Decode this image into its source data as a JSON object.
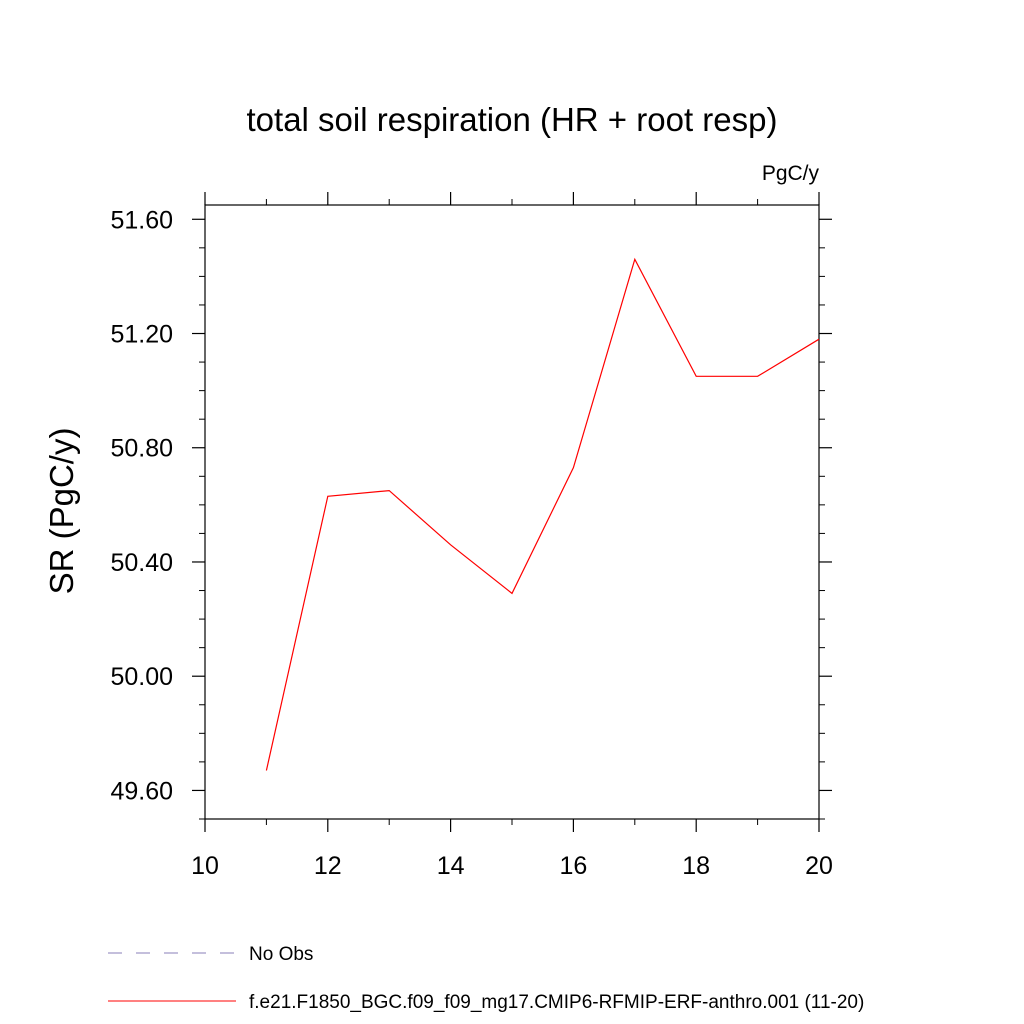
{
  "chart_data": {
    "type": "line",
    "title": "total soil respiration (HR + root resp)",
    "units_label": "PgC/y",
    "ylabel": "SR  (PgC/y)",
    "xlabel": "",
    "xlim": [
      10,
      20
    ],
    "ylim": [
      49.5,
      51.65
    ],
    "x_ticks": [
      10,
      12,
      14,
      16,
      18,
      20
    ],
    "y_ticks": [
      49.6,
      50.0,
      50.4,
      50.8,
      51.2,
      51.6
    ],
    "y_tick_labels": [
      "49.60",
      "50.00",
      "50.40",
      "50.80",
      "51.20",
      "51.60"
    ],
    "series": [
      {
        "name": "f.e21.F1850_BGC.f09_f09_mg17.CMIP6-RFMIP-ERF-anthro.001 (11-20)",
        "color": "#ff0000",
        "style": "solid",
        "x": [
          11,
          12,
          13,
          14,
          15,
          16,
          17,
          18,
          19,
          20
        ],
        "y": [
          49.67,
          50.63,
          50.65,
          50.46,
          50.29,
          50.73,
          51.46,
          51.05,
          51.05,
          51.18
        ]
      }
    ],
    "legend": [
      {
        "label": "No Obs",
        "color": "#8a7fb8",
        "style": "dashed"
      },
      {
        "label": "f.e21.F1850_BGC.f09_f09_mg17.CMIP6-RFMIP-ERF-anthro.001 (11-20)",
        "color": "#ff0000",
        "style": "solid"
      }
    ],
    "legend_position": "bottom-left",
    "grid": false
  }
}
